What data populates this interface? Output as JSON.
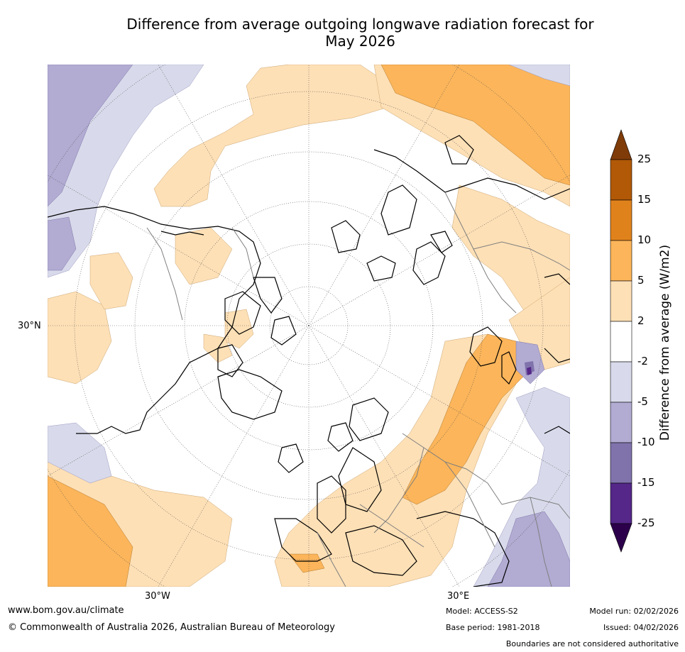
{
  "title_line1": "Difference from average outgoing longwave radiation forecast for",
  "title_line2": "May 2026",
  "map": {
    "projection": "north-polar-stereographic",
    "lat_tick": "30°N",
    "lon_tick_left": "30°W",
    "lon_tick_right": "30°E"
  },
  "colorbar": {
    "title": "Difference from average (W/m2)",
    "labels": [
      "25",
      "15",
      "10",
      "5",
      "2",
      "-2",
      "-5",
      "-10",
      "-15",
      "-25"
    ],
    "colors": [
      "#b15907",
      "#e0821c",
      "#fcb55a",
      "#fee0b6",
      "#ffffff",
      "#d8daeb",
      "#b2abd2",
      "#8073ac",
      "#542788"
    ],
    "extend_high_color": "#7f3b08",
    "extend_low_color": "#2d004b"
  },
  "colors": {
    "land_outline": "#000000",
    "borders": "#7f7f7f",
    "grid": "#555555"
  },
  "footer": {
    "website": "www.bom.gov.au/climate",
    "copyright": "© Commonwealth of Australia 2026, Australian Bureau of Meteorology",
    "model": "Model: ACCESS-S2",
    "base_period": "Base period: 1981-2018",
    "model_run": "Model run: 02/02/2026",
    "issued": "Issued: 04/02/2026",
    "disclaimer": "Boundaries are not considered authoritative"
  }
}
